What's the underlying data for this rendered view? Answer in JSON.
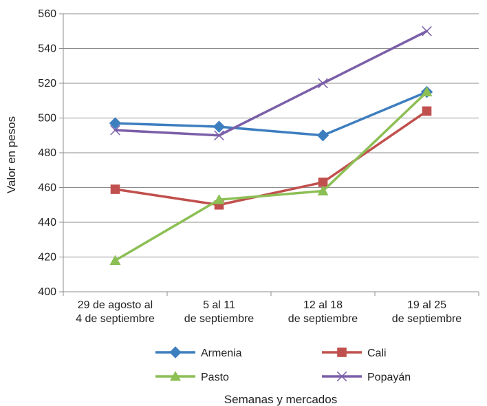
{
  "chart_data": {
    "type": "line",
    "title": "",
    "xlabel": "Semanas y mercados",
    "ylabel": "Valor en pesos",
    "ylim": [
      400,
      560
    ],
    "yticks": [
      400,
      420,
      440,
      460,
      480,
      500,
      520,
      540,
      560
    ],
    "grid": "horizontal",
    "legend_position": "bottom",
    "categories": [
      [
        "29 de agosto al",
        "4 de septiembre"
      ],
      [
        "5 al 11",
        "de septiembre"
      ],
      [
        "12 al 18",
        "de septiembre"
      ],
      [
        "19 al 25",
        "de septiembre"
      ]
    ],
    "series": [
      {
        "name": "Armenia",
        "color": "#3d7ebf",
        "marker": "diamond",
        "values": [
          497,
          495,
          490,
          515
        ]
      },
      {
        "name": "Cali",
        "color": "#c0504d",
        "marker": "square",
        "values": [
          459,
          450,
          463,
          504
        ]
      },
      {
        "name": "Pasto",
        "color": "#8cbf54",
        "marker": "triangle",
        "values": [
          418,
          453,
          458,
          515
        ]
      },
      {
        "name": "Popayán",
        "color": "#7b5fa8",
        "marker": "x",
        "values": [
          493,
          490,
          520,
          550
        ]
      }
    ]
  }
}
